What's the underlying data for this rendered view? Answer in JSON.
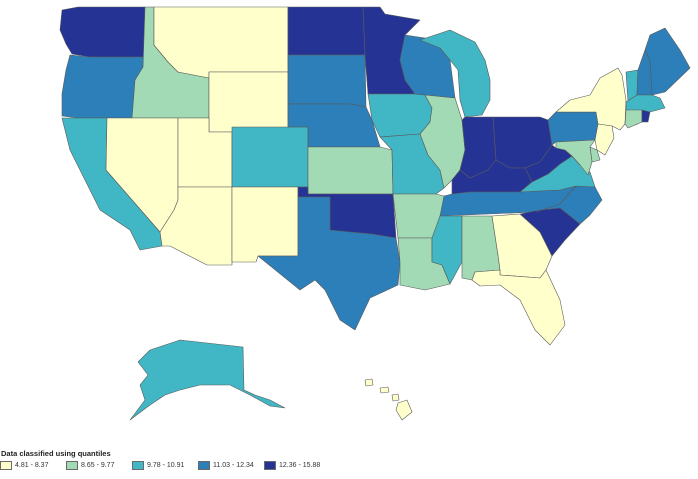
{
  "colors": {
    "c1": "#ffffcc",
    "c2": "#a1dab4",
    "c3": "#41b6c4",
    "c4": "#2c7fb8",
    "c5": "#253494"
  },
  "legend": {
    "title": "Data classified using quantiles",
    "items": [
      {
        "label": "4.81 - 8.37",
        "color": "#ffffcc"
      },
      {
        "label": "8.65 - 9.77",
        "color": "#a1dab4"
      },
      {
        "label": "9.78 - 10.91",
        "color": "#41b6c4"
      },
      {
        "label": "11.03 - 12.34",
        "color": "#2c7fb8"
      },
      {
        "label": "12.36 - 15.88",
        "color": "#253494"
      }
    ]
  },
  "states": {
    "WA": "c5",
    "OR": "c4",
    "CA": "c3",
    "ID": "c2",
    "NV": "c1",
    "MT": "c1",
    "WY": "c1",
    "UT": "c1",
    "AZ": "c1",
    "CO": "c3",
    "NM": "c1",
    "ND": "c5",
    "SD": "c4",
    "NE": "c4",
    "KS": "c2",
    "OK": "c5",
    "TX": "c4",
    "MN": "c5",
    "IA": "c3",
    "MO": "c3",
    "AR": "c2",
    "LA": "c2",
    "WI": "c4",
    "IL": "c2",
    "MI": "c3",
    "IN": "c5",
    "OH": "c5",
    "KY": "c5",
    "TN": "c4",
    "MS": "c3",
    "AL": "c2",
    "GA": "c1",
    "FL": "c1",
    "SC": "c5",
    "NC": "c4",
    "VA": "c3",
    "WV": "c5",
    "PA": "c4",
    "NY": "c1",
    "NJ": "c1",
    "DE": "c2",
    "MD": "c2",
    "VT": "c3",
    "NH": "c4",
    "ME": "c4",
    "MA": "c3",
    "CT": "c2",
    "RI": "c5",
    "AK": "c3",
    "HI": "c1"
  }
}
